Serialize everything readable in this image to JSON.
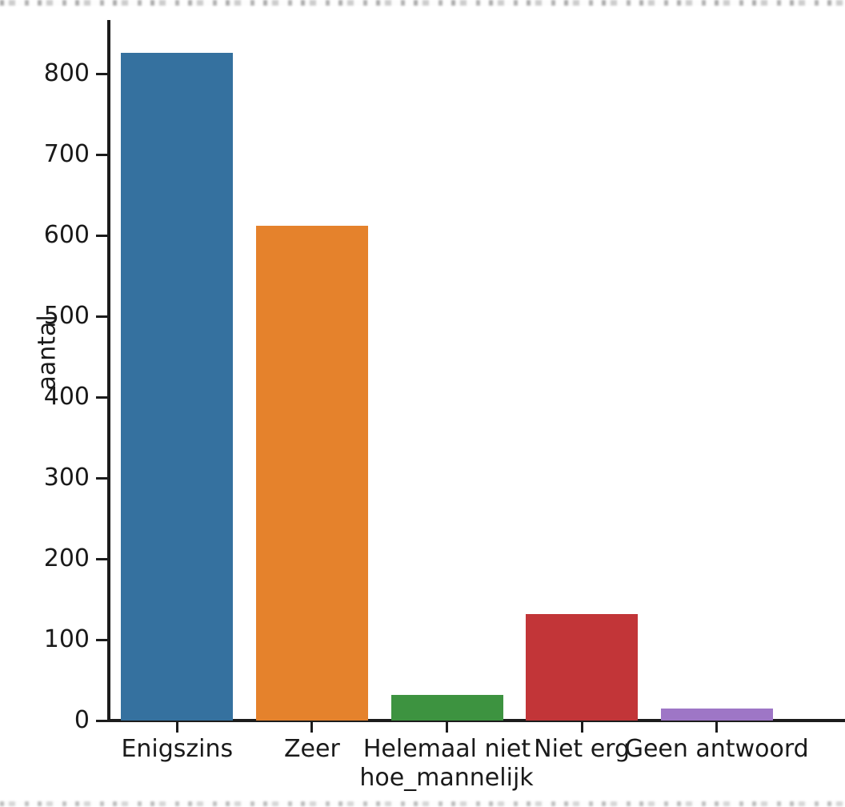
{
  "chart_data": {
    "type": "bar",
    "title": "",
    "xlabel": "hoe_mannelijk",
    "ylabel": "aantal",
    "categories": [
      "Enigszins",
      "Zeer",
      "Helemaal niet",
      "Niet erg",
      "Geen antwoord"
    ],
    "values": [
      826,
      612,
      32,
      132,
      15
    ],
    "bar_colors": [
      "#35719f",
      "#e5822c",
      "#3d9340",
      "#c23538",
      "#9e76c6"
    ],
    "yticks": [
      0,
      100,
      200,
      300,
      400,
      500,
      600,
      700,
      800
    ],
    "ylim": [
      0,
      866
    ],
    "grid": false,
    "legend": "none",
    "axis_color": "#1c1c1c",
    "text_color": "#1a1a1a"
  }
}
